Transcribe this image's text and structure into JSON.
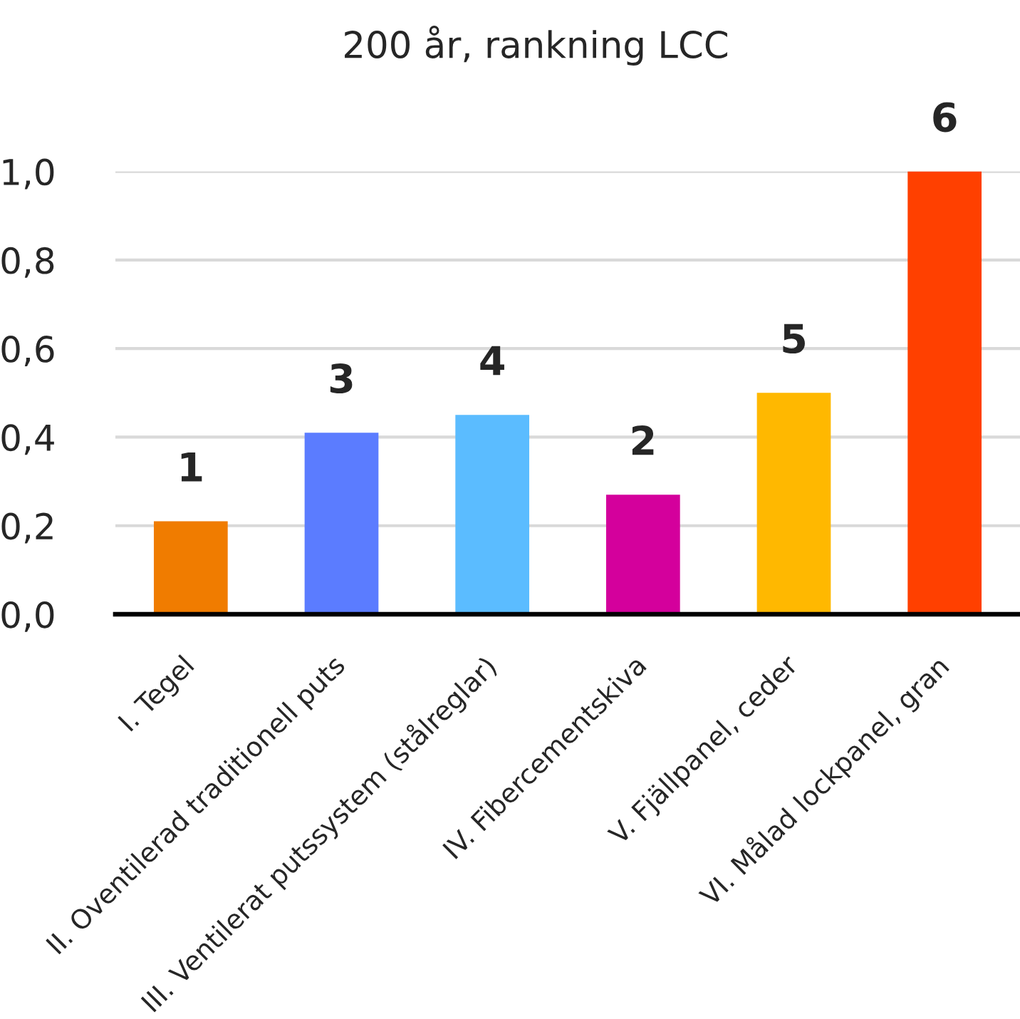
{
  "chart_data": {
    "type": "bar",
    "title": "200 år, rankning LCC",
    "categories": [
      "I. Tegel",
      "II. Oventilerad traditionell puts",
      "III. Ventilerat putssystem (stålreglar)",
      "IV. Fibercementskiva",
      "V. Fjällpanel, ceder",
      "VI. Målad lockpanel, gran"
    ],
    "values": [
      0.21,
      0.41,
      0.45,
      0.27,
      0.5,
      1.0
    ],
    "colors": [
      "#f07c00",
      "#5b7cff",
      "#5bbcff",
      "#d4009c",
      "#ffb800",
      "#ff4000"
    ],
    "annotations": [
      {
        "text": "1",
        "x": "I. Tegel",
        "y": 0.21
      },
      {
        "text": "3",
        "x": "II. Oventilerad traditionell puts",
        "y": 0.41
      },
      {
        "text": "4",
        "x": "III. Ventilerat putssystem (stålreglar)",
        "y": 0.45
      },
      {
        "text": "2",
        "x": "IV. Fibercementskiva",
        "y": 0.27
      },
      {
        "text": "5",
        "x": "V. Fjällpanel, ceder",
        "y": 0.5
      },
      {
        "text": "6",
        "x": "VI. Målad lockpanel, gran",
        "y": 1.0
      }
    ],
    "ylim": [
      0,
      1.0
    ],
    "yticks": [
      {
        "value": 0,
        "label": "0,0"
      },
      {
        "value": 0.2,
        "label": "0,2"
      },
      {
        "value": 0.4,
        "label": "0,4"
      },
      {
        "value": 0.6,
        "label": "0,6"
      },
      {
        "value": 0.8,
        "label": "0,8"
      },
      {
        "value": 1.0,
        "label": "1,0"
      }
    ],
    "grid": "y"
  }
}
